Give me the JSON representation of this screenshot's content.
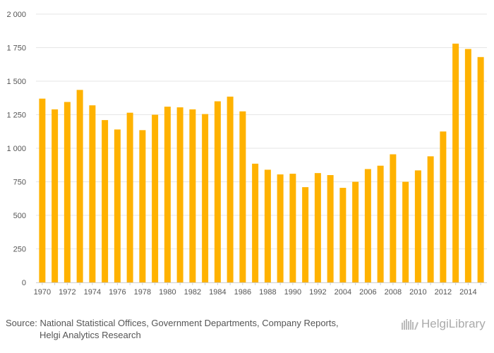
{
  "chart_data": {
    "type": "bar",
    "title": "",
    "xlabel": "",
    "ylabel": "",
    "ylim": [
      0,
      2000
    ],
    "yticks": [
      0,
      250,
      500,
      750,
      1000,
      1250,
      1500,
      1750,
      2000
    ],
    "ytick_labels": [
      "0",
      "250",
      "500",
      "750",
      "1 000",
      "1 250",
      "1 500",
      "1 750",
      "2 000"
    ],
    "bar_color": "#ffb200",
    "categories": [
      "1970",
      "1971",
      "1972",
      "1973",
      "1974",
      "1975",
      "1976",
      "1977",
      "1978",
      "1979",
      "1980",
      "1981",
      "1982",
      "1983",
      "1984",
      "1985",
      "1986",
      "1987",
      "1988",
      "1989",
      "1990",
      "1991",
      "1992",
      "1993",
      "2004",
      "2005",
      "2006",
      "2007",
      "2008",
      "2009",
      "2010",
      "2011",
      "2012",
      "2013",
      "2014",
      "2015"
    ],
    "xtick_labels": [
      "1970",
      "1972",
      "1974",
      "1976",
      "1978",
      "1980",
      "1982",
      "1984",
      "1986",
      "1988",
      "1990",
      "1992",
      "2004",
      "2006",
      "2008",
      "2010",
      "2012",
      "2014"
    ],
    "values": [
      1370,
      1290,
      1345,
      1435,
      1320,
      1210,
      1140,
      1265,
      1135,
      1250,
      1310,
      1305,
      1290,
      1255,
      1350,
      1385,
      1275,
      885,
      840,
      805,
      810,
      710,
      815,
      800,
      705,
      750,
      845,
      870,
      955,
      750,
      835,
      940,
      1125,
      1780,
      1740,
      1680
    ],
    "grid": true
  },
  "footer": {
    "source_label": "Source:",
    "source_line1": "National Statistical Offices, Government Departments, Company Reports,",
    "source_line2": "Helgi Analytics Research"
  },
  "brand": {
    "name": "HelgiLibrary",
    "icon": "library-icon"
  }
}
